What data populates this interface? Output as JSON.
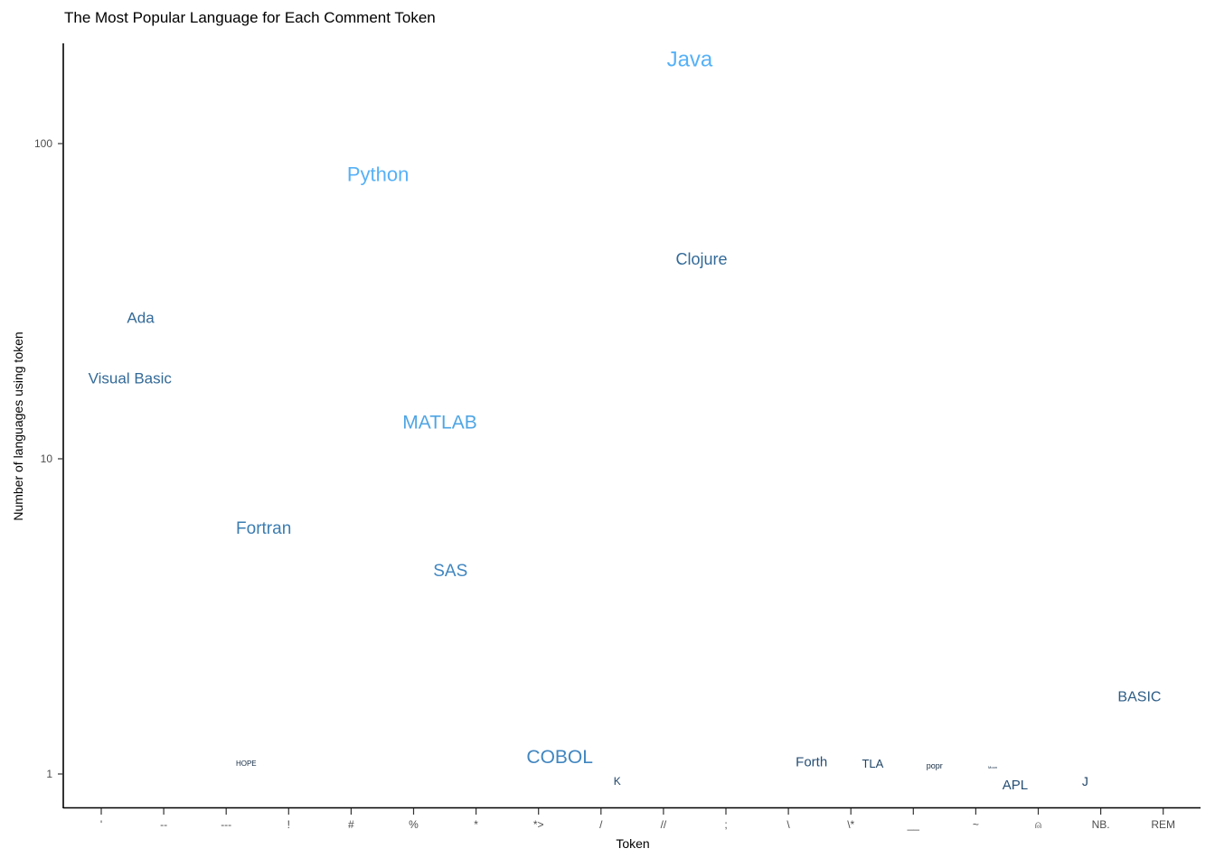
{
  "chart_data": {
    "type": "scatter",
    "title": "The Most Popular Language for Each Comment Token",
    "xlabel": "Token",
    "ylabel": "Number of languages using token",
    "y_scale": "log10",
    "ylim": [
      0.8,
      220
    ],
    "y_ticks": [
      {
        "value": 1,
        "label": "1"
      },
      {
        "value": 10,
        "label": "10"
      },
      {
        "value": 100,
        "label": "100"
      }
    ],
    "categories": [
      "'",
      "--",
      "---",
      "!",
      "#",
      "%",
      "*",
      "*>",
      "/",
      "//",
      ";",
      "\\",
      "\\*",
      "__",
      "~",
      "⍝",
      "NB.",
      "REM"
    ],
    "grid": false,
    "legend": "none",
    "points": [
      {
        "label": "Ada",
        "x": 0.63,
        "y": 28,
        "size": 17,
        "color": "#336a98"
      },
      {
        "label": "Visual Basic",
        "x": 0.46,
        "y": 18,
        "size": 17,
        "color": "#336a98"
      },
      {
        "label": "HOPE",
        "x": 2.32,
        "y": 1.08,
        "size": 8,
        "color": "#132b43"
      },
      {
        "label": "Fortran",
        "x": 2.6,
        "y": 6.0,
        "size": 19,
        "color": "#3b7cb0"
      },
      {
        "label": "Python",
        "x": 4.43,
        "y": 80,
        "size": 22,
        "color": "#56b1f7"
      },
      {
        "label": "MATLAB",
        "x": 5.42,
        "y": 13,
        "size": 21,
        "color": "#4fa5e4"
      },
      {
        "label": "SAS",
        "x": 5.59,
        "y": 4.4,
        "size": 19,
        "color": "#4086c0"
      },
      {
        "label": "COBOL",
        "x": 7.34,
        "y": 1.13,
        "size": 21,
        "color": "#4086c0"
      },
      {
        "label": "K",
        "x": 8.26,
        "y": 0.95,
        "size": 12,
        "color": "#1e4467"
      },
      {
        "label": "Java",
        "x": 9.42,
        "y": 185,
        "size": 24,
        "color": "#56b1f7"
      },
      {
        "label": "Clojure",
        "x": 9.61,
        "y": 43,
        "size": 18,
        "color": "#336a98"
      },
      {
        "label": "Forth",
        "x": 11.37,
        "y": 1.09,
        "size": 15,
        "color": "#254e75"
      },
      {
        "label": "TLA",
        "x": 12.35,
        "y": 1.08,
        "size": 13,
        "color": "#1e4467"
      },
      {
        "label": "popr",
        "x": 13.34,
        "y": 1.06,
        "size": 9,
        "color": "#132b43"
      },
      {
        "label": "Moon",
        "x": 14.27,
        "y": 1.05,
        "size": 4,
        "color": "#132b43"
      },
      {
        "label": "APL",
        "x": 14.63,
        "y": 0.92,
        "size": 15,
        "color": "#254e75"
      },
      {
        "label": "J",
        "x": 15.75,
        "y": 0.95,
        "size": 14,
        "color": "#1e4467"
      },
      {
        "label": "BASIC",
        "x": 16.62,
        "y": 1.75,
        "size": 16,
        "color": "#2d5d86"
      }
    ]
  }
}
